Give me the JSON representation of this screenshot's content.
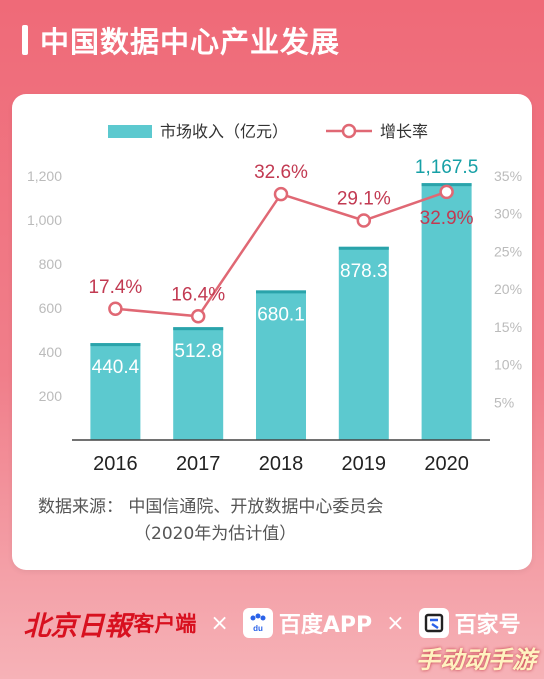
{
  "title": "中国数据中心产业发展",
  "chart_data": {
    "type": "bar+line",
    "categories": [
      "2016",
      "2017",
      "2018",
      "2019",
      "2020"
    ],
    "series": [
      {
        "name": "市场收入（亿元）",
        "type": "bar",
        "axis": "left",
        "values": [
          440.4,
          512.8,
          680.1,
          878.3,
          1167.5
        ],
        "labels": [
          "440.4",
          "512.8",
          "680.1",
          "878.3",
          "1,167.5"
        ],
        "color": "#5cc9cf"
      },
      {
        "name": "增长率",
        "type": "line",
        "axis": "right",
        "values": [
          17.4,
          16.4,
          32.6,
          29.1,
          32.9
        ],
        "labels": [
          "17.4%",
          "16.4%",
          "32.6%",
          "29.1%",
          "32.9%"
        ],
        "color": "#e06874"
      }
    ],
    "y_left": {
      "min": 0,
      "max": 1200,
      "ticks": [
        200,
        400,
        600,
        800,
        "1,000",
        "1,200"
      ]
    },
    "y_right": {
      "min": 0,
      "max": 35,
      "ticks": [
        "5%",
        "10%",
        "15%",
        "20%",
        "25%",
        "30%",
        "35%"
      ]
    },
    "legend_position": "top-center",
    "label_color_dark": "#c23a52"
  },
  "source": {
    "line1": "数据来源：  中国信通院、开放数据中心委员会",
    "line2": "（2020年为估计值）"
  },
  "footer": {
    "brand1": "北京日報",
    "brand1_sub": "客户端",
    "times": "×",
    "brand2_icon": "du",
    "brand2": "百度APP",
    "brand3": "百家号"
  },
  "watermark": "手动动手游"
}
